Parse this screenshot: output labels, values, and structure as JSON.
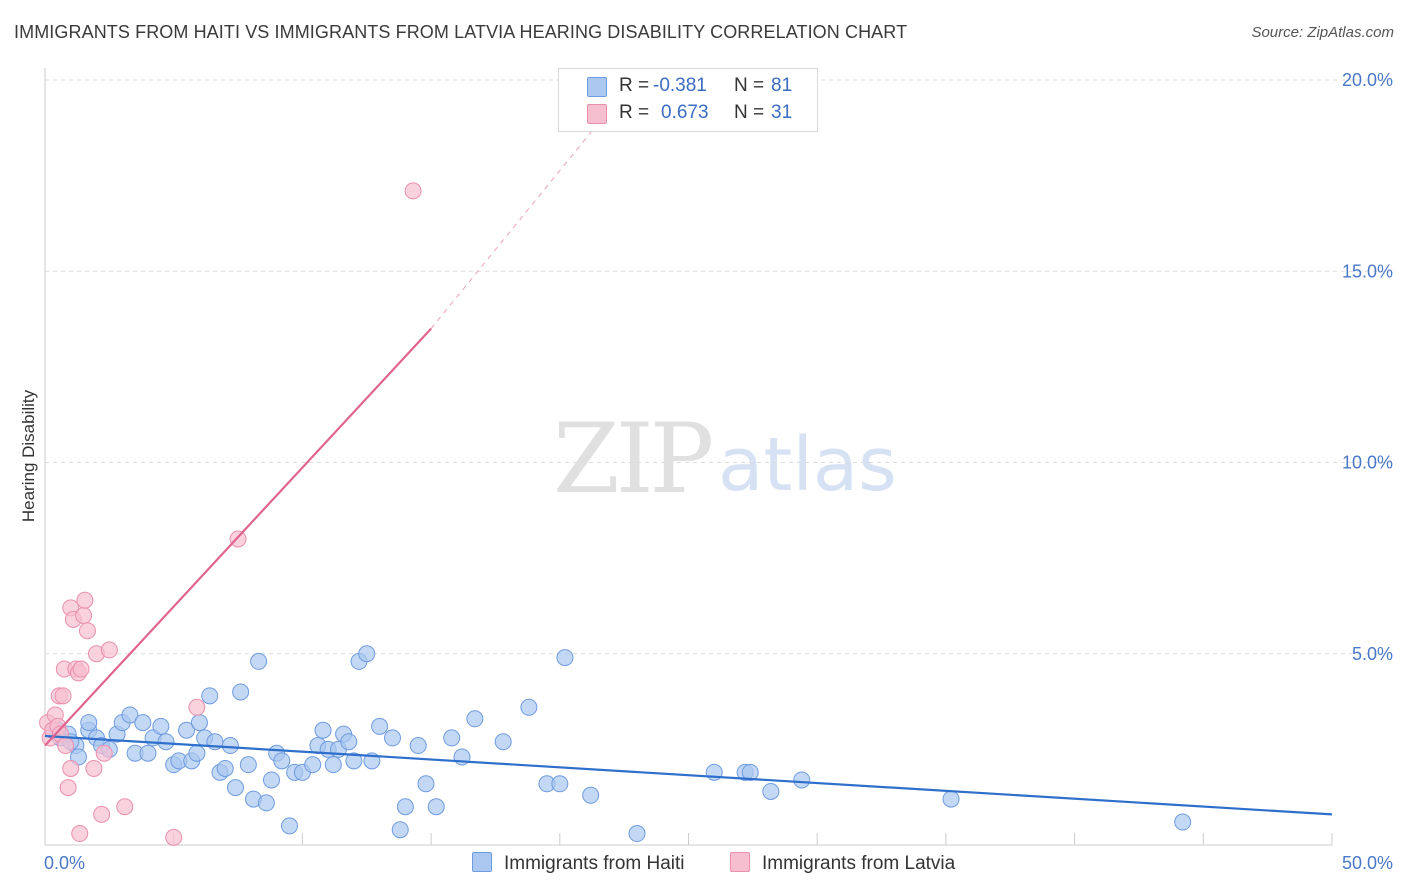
{
  "header": {
    "title": "IMMIGRANTS FROM HAITI VS IMMIGRANTS FROM LATVIA HEARING DISABILITY CORRELATION CHART",
    "source": "Source: ZipAtlas.com"
  },
  "watermark": {
    "zip": "ZIP",
    "atlas": "atlas"
  },
  "legend": {
    "haiti": {
      "r_label": "R =",
      "r_value": "-0.381",
      "n_label": "N =",
      "n_value": "81"
    },
    "latvia": {
      "r_label": "R =",
      "r_value": "0.673",
      "n_label": "N =",
      "n_value": "31"
    }
  },
  "bottom_legend": {
    "haiti": "Immigrants from Haiti",
    "latvia": "Immigrants from Latvia"
  },
  "colors": {
    "haiti_fill": "#aac8f0",
    "haiti_stroke": "#6f9be0",
    "haiti_line": "#2e6fcc",
    "latvia_fill": "#f6bfd0",
    "latvia_stroke": "#ea8fad",
    "latvia_line": "#e06490",
    "grid": "#dcdcdc",
    "tick_text": "#4a78c8"
  },
  "chart_data": {
    "type": "scatter",
    "title": "IMMIGRANTS FROM HAITI VS IMMIGRANTS FROM LATVIA HEARING DISABILITY CORRELATION CHART",
    "xlabel": "",
    "ylabel": "Hearing Disability",
    "xlim": [
      0,
      50
    ],
    "ylim": [
      0,
      20.5
    ],
    "x_tick_labels": [
      "0.0%",
      "50.0%"
    ],
    "y_ticks": [
      5,
      10,
      15,
      20
    ],
    "y_tick_labels": [
      "5.0%",
      "10.0%",
      "15.0%",
      "20.0%"
    ],
    "series": [
      {
        "name": "Immigrants from Haiti",
        "r": -0.381,
        "n": 81,
        "trend": {
          "x0": 0,
          "y0": 2.85,
          "x1": 50,
          "y1": 0.8
        },
        "points": [
          [
            0.3,
            3.0
          ],
          [
            0.6,
            2.8
          ],
          [
            0.9,
            2.9
          ],
          [
            1.2,
            2.6
          ],
          [
            1.3,
            2.3
          ],
          [
            1.7,
            3.0
          ],
          [
            1.7,
            3.2
          ],
          [
            2.0,
            2.8
          ],
          [
            2.2,
            2.6
          ],
          [
            2.5,
            2.5
          ],
          [
            2.8,
            2.9
          ],
          [
            3.0,
            3.2
          ],
          [
            3.3,
            3.4
          ],
          [
            3.5,
            2.4
          ],
          [
            3.8,
            3.2
          ],
          [
            4.0,
            2.4
          ],
          [
            4.2,
            2.8
          ],
          [
            4.5,
            3.1
          ],
          [
            4.7,
            2.7
          ],
          [
            5.0,
            2.1
          ],
          [
            5.2,
            2.2
          ],
          [
            5.5,
            3.0
          ],
          [
            5.7,
            2.2
          ],
          [
            5.9,
            2.4
          ],
          [
            6.0,
            3.2
          ],
          [
            6.2,
            2.8
          ],
          [
            6.4,
            3.9
          ],
          [
            6.6,
            2.7
          ],
          [
            6.8,
            1.9
          ],
          [
            7.0,
            2.0
          ],
          [
            7.2,
            2.6
          ],
          [
            7.4,
            1.5
          ],
          [
            7.6,
            4.0
          ],
          [
            7.9,
            2.1
          ],
          [
            8.1,
            1.2
          ],
          [
            8.3,
            4.8
          ],
          [
            8.6,
            1.1
          ],
          [
            8.8,
            1.7
          ],
          [
            9.0,
            2.4
          ],
          [
            9.2,
            2.2
          ],
          [
            9.5,
            0.5
          ],
          [
            9.7,
            1.9
          ],
          [
            10.0,
            1.9
          ],
          [
            10.4,
            2.1
          ],
          [
            10.6,
            2.6
          ],
          [
            10.8,
            3.0
          ],
          [
            11.0,
            2.5
          ],
          [
            11.2,
            2.1
          ],
          [
            11.4,
            2.5
          ],
          [
            11.6,
            2.9
          ],
          [
            11.8,
            2.7
          ],
          [
            12.0,
            2.2
          ],
          [
            12.2,
            4.8
          ],
          [
            12.5,
            5.0
          ],
          [
            12.7,
            2.2
          ],
          [
            13.0,
            3.1
          ],
          [
            13.5,
            2.8
          ],
          [
            13.8,
            0.4
          ],
          [
            14.0,
            1.0
          ],
          [
            14.5,
            2.6
          ],
          [
            14.8,
            1.6
          ],
          [
            15.2,
            1.0
          ],
          [
            15.8,
            2.8
          ],
          [
            16.2,
            2.3
          ],
          [
            16.7,
            3.3
          ],
          [
            17.8,
            2.7
          ],
          [
            18.8,
            3.6
          ],
          [
            19.5,
            1.6
          ],
          [
            20.0,
            1.6
          ],
          [
            20.2,
            4.9
          ],
          [
            21.2,
            1.3
          ],
          [
            23.0,
            0.3
          ],
          [
            26.0,
            1.9
          ],
          [
            27.2,
            1.9
          ],
          [
            27.4,
            1.9
          ],
          [
            28.2,
            1.4
          ],
          [
            29.4,
            1.7
          ],
          [
            35.2,
            1.2
          ],
          [
            44.2,
            0.6
          ],
          [
            0.5,
            3.0
          ],
          [
            1.0,
            2.7
          ]
        ]
      },
      {
        "name": "Immigrants from Latvia",
        "r": 0.673,
        "n": 31,
        "trend": {
          "x0": 0,
          "y0": 2.6,
          "x1": 15,
          "y1": 13.5,
          "dash_x1": 22.5,
          "dash_y1": 19.7
        },
        "points": [
          [
            0.1,
            3.2
          ],
          [
            0.2,
            2.8
          ],
          [
            0.3,
            3.0
          ],
          [
            0.4,
            3.4
          ],
          [
            0.5,
            3.1
          ],
          [
            0.55,
            3.9
          ],
          [
            0.6,
            2.9
          ],
          [
            0.7,
            3.9
          ],
          [
            0.75,
            4.6
          ],
          [
            0.8,
            2.6
          ],
          [
            0.9,
            1.5
          ],
          [
            1.0,
            2.0
          ],
          [
            1.0,
            6.2
          ],
          [
            1.1,
            5.9
          ],
          [
            1.2,
            4.6
          ],
          [
            1.3,
            4.5
          ],
          [
            1.35,
            0.3
          ],
          [
            1.4,
            4.6
          ],
          [
            1.5,
            6.0
          ],
          [
            1.55,
            6.4
          ],
          [
            1.65,
            5.6
          ],
          [
            1.9,
            2.0
          ],
          [
            2.0,
            5.0
          ],
          [
            2.2,
            0.8
          ],
          [
            2.3,
            2.4
          ],
          [
            2.5,
            5.1
          ],
          [
            3.1,
            1.0
          ],
          [
            5.0,
            0.2
          ],
          [
            5.9,
            3.6
          ],
          [
            7.5,
            8.0
          ],
          [
            14.3,
            17.1
          ]
        ]
      }
    ]
  }
}
